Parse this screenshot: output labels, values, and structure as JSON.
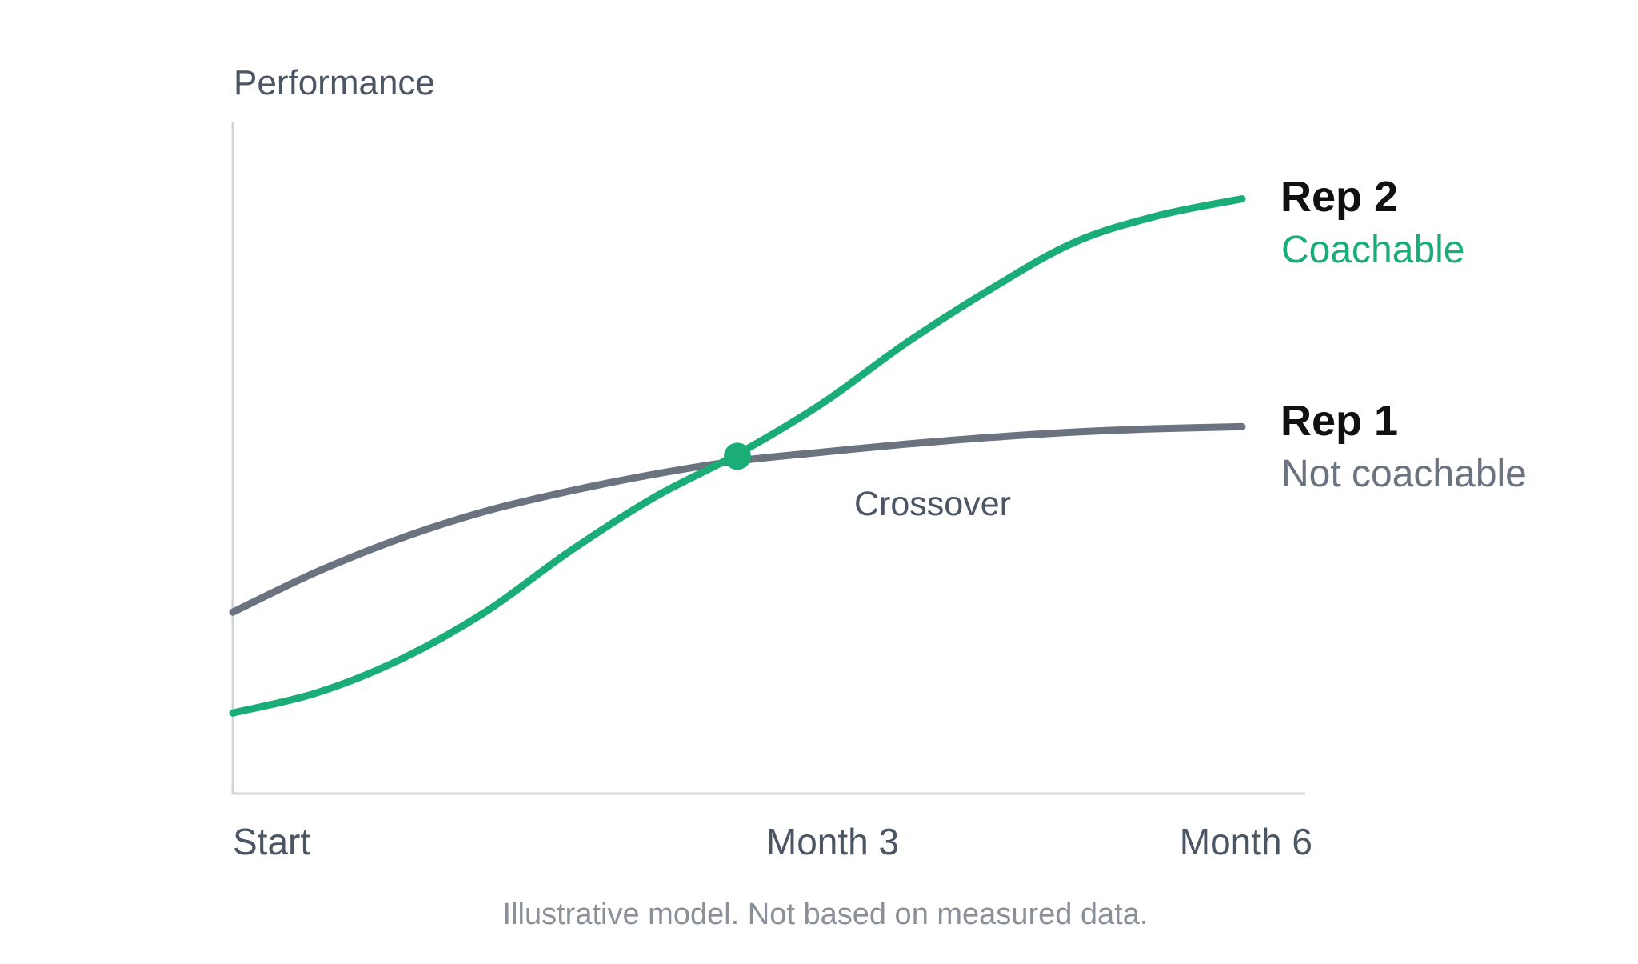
{
  "chart_data": {
    "type": "line",
    "title": "",
    "xlabel": "",
    "ylabel": "Performance",
    "x_ticks": [
      "Start",
      "Month 3",
      "Month 6"
    ],
    "series": [
      {
        "name": "Rep 2",
        "subtitle": "Coachable",
        "color": "#1aad77",
        "x": [
          0,
          0.5,
          1,
          1.5,
          2,
          2.5,
          3,
          3.5,
          4,
          4.5,
          5,
          5.5,
          6
        ],
        "values": [
          12,
          15,
          20,
          27,
          36,
          44,
          50.5,
          58,
          67,
          75,
          82,
          86,
          88.5
        ]
      },
      {
        "name": "Rep 1",
        "subtitle": "Not coachable",
        "color": "#6b7280",
        "x": [
          0,
          0.5,
          1,
          1.5,
          2,
          2.5,
          3,
          3.5,
          4,
          4.5,
          5,
          5.5,
          6
        ],
        "values": [
          27,
          33,
          38,
          42,
          45,
          47.5,
          49.5,
          50.8,
          52,
          53,
          53.8,
          54.3,
          54.6
        ]
      }
    ],
    "annotations": [
      {
        "text": "Crossover",
        "x": 3,
        "y": 50.2,
        "marker_color": "#1aad77"
      }
    ],
    "xlim": [
      0,
      6
    ],
    "ylim": [
      0,
      100
    ],
    "grid": false,
    "legend": "inline-right",
    "footnote": "Illustrative model. Not based on measured data."
  }
}
